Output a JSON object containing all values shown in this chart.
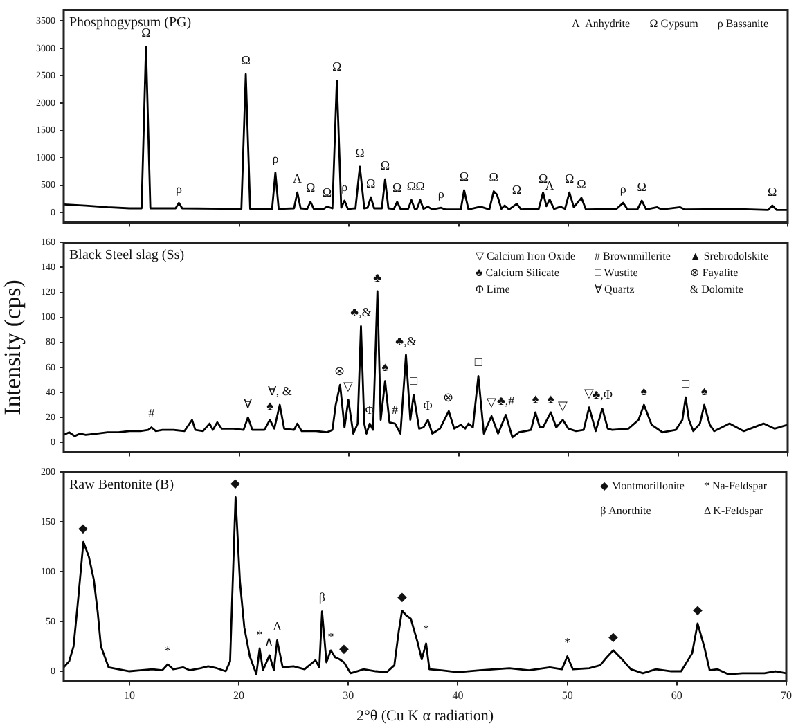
{
  "chart_data": [
    {
      "type": "line",
      "title": "Phosphogypsum (PG)",
      "color": "#000000",
      "x": [
        4,
        6,
        8,
        10,
        11.1,
        11.5,
        11.9,
        14.2,
        14.5,
        14.8,
        20.2,
        20.6,
        21.0,
        23.0,
        23.3,
        23.6,
        25.0,
        25.3,
        25.6,
        26.2,
        26.5,
        26.8,
        27.7,
        28.0,
        28.5,
        28.9,
        29.3,
        29.6,
        29.9,
        30.6,
        31.0,
        31.4,
        31.7,
        32.0,
        32.3,
        33.0,
        33.3,
        33.6,
        34.1,
        34.4,
        34.7,
        35.4,
        35.7,
        36.0,
        36.2,
        36.5,
        36.8,
        37.2,
        37.6,
        38.4,
        38.8,
        40.2,
        40.5,
        40.9,
        42.0,
        42.8,
        43.2,
        43.5,
        43.9,
        44.2,
        44.6,
        45.3,
        45.7,
        46.5,
        47.3,
        47.7,
        48.0,
        48.3,
        48.7,
        49.3,
        49.7,
        50.1,
        50.5,
        51.2,
        51.6,
        54.4,
        55.0,
        55.4,
        56.3,
        56.7,
        57.1,
        58.1,
        58.5,
        60.2,
        60.6,
        65.1,
        68.2,
        68.6,
        69.0,
        70
      ],
      "values": [
        150,
        130,
        100,
        80,
        80,
        3030,
        80,
        80,
        180,
        80,
        70,
        2530,
        70,
        70,
        730,
        70,
        80,
        370,
        80,
        70,
        200,
        70,
        70,
        110,
        80,
        2410,
        90,
        220,
        70,
        80,
        840,
        80,
        90,
        280,
        80,
        80,
        610,
        80,
        70,
        200,
        70,
        70,
        230,
        70,
        70,
        230,
        70,
        110,
        60,
        90,
        60,
        60,
        410,
        60,
        110,
        60,
        390,
        330,
        70,
        130,
        60,
        160,
        60,
        70,
        70,
        370,
        120,
        240,
        70,
        110,
        70,
        370,
        100,
        270,
        60,
        70,
        180,
        60,
        60,
        220,
        60,
        100,
        60,
        100,
        60,
        70,
        50,
        130,
        50,
        50
      ],
      "xlim": [
        4,
        70
      ],
      "xticks": [
        10,
        20,
        30,
        40,
        50,
        60,
        70
      ],
      "ylim": [
        -180,
        3700
      ],
      "yticks": [
        0,
        500,
        1000,
        1500,
        2000,
        2500,
        3000,
        3500
      ],
      "tick_labels": "y",
      "annotations": [
        "Λ  Anhydrite",
        "Ω Gypsum",
        "ρ Bassanite",
        {
          "text": "Ω",
          "x": 11.5,
          "y": 3030
        },
        {
          "text": "ρ",
          "x": 14.5,
          "y": 180
        },
        {
          "text": "Ω",
          "x": 20.6,
          "y": 2530
        },
        {
          "text": "ρ",
          "x": 23.3,
          "y": 730
        },
        {
          "text": "Λ",
          "x": 25.3,
          "y": 370
        },
        {
          "text": "Ω",
          "x": 26.5,
          "y": 200
        },
        {
          "text": "Ω",
          "x": 28.0,
          "y": 110
        },
        {
          "text": "Ω",
          "x": 28.9,
          "y": 2410
        },
        {
          "text": "ρ",
          "x": 29.6,
          "y": 220
        },
        {
          "text": "Ω",
          "x": 31.0,
          "y": 840
        },
        {
          "text": "Ω",
          "x": 32.0,
          "y": 280
        },
        {
          "text": "Ω",
          "x": 33.3,
          "y": 610
        },
        {
          "text": "Ω",
          "x": 34.4,
          "y": 200
        },
        {
          "text": "Ω",
          "x": 35.7,
          "y": 230
        },
        {
          "text": "Ω",
          "x": 36.5,
          "y": 230
        },
        {
          "text": "ρ",
          "x": 38.4,
          "y": 90
        },
        {
          "text": "Ω",
          "x": 40.5,
          "y": 410
        },
        {
          "text": "Ω",
          "x": 43.2,
          "y": 390
        },
        {
          "text": "Ω",
          "x": 45.3,
          "y": 160
        },
        {
          "text": "Ω",
          "x": 47.7,
          "y": 370
        },
        {
          "text": "Λ",
          "x": 48.3,
          "y": 240
        },
        {
          "text": "Ω",
          "x": 50.1,
          "y": 370
        },
        {
          "text": "Ω",
          "x": 51.2,
          "y": 270
        },
        {
          "text": "ρ",
          "x": 55.0,
          "y": 180
        },
        {
          "text": "Ω",
          "x": 56.7,
          "y": 220
        },
        {
          "text": "Ω",
          "x": 68.6,
          "y": 130
        }
      ]
    },
    {
      "type": "line",
      "title": "Black Steel slag (Ss)",
      "ylabel": "Intensity (cps)",
      "color": "#000000",
      "x": [
        4,
        4.5,
        5,
        5.5,
        6,
        7,
        8,
        9,
        10,
        11,
        11.7,
        12,
        12.4,
        13,
        14,
        15,
        15.7,
        16,
        16.7,
        17.3,
        17.6,
        18.0,
        18.4,
        19.5,
        20.4,
        20.8,
        21.2,
        22.3,
        22.8,
        23.2,
        23.7,
        24.1,
        25.0,
        25.3,
        25.7,
        27.0,
        28.0,
        28.5,
        28.8,
        29.2,
        29.6,
        29.95,
        30.4,
        30.8,
        31.1,
        31.4,
        31.6,
        31.9,
        32.2,
        32.6,
        32.9,
        33.3,
        33.7,
        34.2,
        34.7,
        35.2,
        35.6,
        35.9,
        36.4,
        36.8,
        37.2,
        37.6,
        38.3,
        39.1,
        39.6,
        40.2,
        40.6,
        40.9,
        41.3,
        41.8,
        42.3,
        43.0,
        43.6,
        44.3,
        44.9,
        45.5,
        46.1,
        46.6,
        47.0,
        47.4,
        47.7,
        48.4,
        48.9,
        49.5,
        50.0,
        50.7,
        51.4,
        51.9,
        52.5,
        53.1,
        53.6,
        54.0,
        55.5,
        56.4,
        56.9,
        57.6,
        58.6,
        59.8,
        60.4,
        60.7,
        61.0,
        61.4,
        62.0,
        62.4,
        62.9,
        63.3,
        64.7,
        66.0,
        67.8,
        68.8,
        70
      ],
      "values": [
        6,
        8,
        5,
        7,
        6,
        7,
        8,
        8,
        9,
        9,
        10,
        12,
        9,
        10,
        10,
        9,
        18,
        10,
        9,
        15,
        10,
        16,
        11,
        11,
        10,
        20,
        10,
        10,
        18,
        11,
        30,
        11,
        10,
        15,
        9,
        9,
        8,
        10,
        30,
        46,
        12,
        34,
        7,
        15,
        93,
        15,
        7,
        15,
        10,
        121,
        18,
        49,
        16,
        15,
        7,
        70,
        18,
        38,
        11,
        12,
        18,
        7,
        11,
        25,
        11,
        14,
        11,
        15,
        12,
        53,
        7,
        21,
        7,
        22,
        4,
        8,
        9,
        10,
        24,
        12,
        12,
        24,
        12,
        18,
        11,
        9,
        10,
        28,
        9,
        27,
        11,
        10,
        11,
        18,
        30,
        14,
        8,
        10,
        18,
        36,
        18,
        9,
        15,
        30,
        14,
        9,
        15,
        9,
        15,
        11,
        14
      ],
      "xlim": [
        4,
        70
      ],
      "xticks": [
        10,
        20,
        30,
        40,
        50,
        60,
        70
      ],
      "ylim": [
        -8,
        160
      ],
      "yticks": [
        0,
        20,
        40,
        60,
        80,
        100,
        120,
        140,
        160
      ],
      "tick_labels": "y",
      "annotations": [
        "▽ Calcium Iron Oxide",
        "# Brownmillerite",
        "▲ Srebrodolskite",
        "♣ Calcium Silicate",
        "□ Wustite",
        "⊗ Fayalite",
        "Φ Lime",
        "∀ Quartz",
        "& Dolomite",
        {
          "text": "#",
          "x": 12.0,
          "y": 12
        },
        {
          "text": "∀",
          "x": 20.8,
          "y": 20
        },
        {
          "text": "♠",
          "x": 22.8,
          "y": 18
        },
        {
          "text": "∀, &",
          "x": 23.7,
          "y": 30
        },
        {
          "text": "⊗",
          "x": 29.2,
          "y": 46
        },
        {
          "text": "▽",
          "x": 29.95,
          "y": 34
        },
        {
          "text": "♣,&",
          "x": 31.1,
          "y": 93
        },
        {
          "text": "Φ",
          "x": 31.9,
          "y": 15
        },
        {
          "text": "♣",
          "x": 32.6,
          "y": 121
        },
        {
          "text": "♠",
          "x": 33.3,
          "y": 49
        },
        {
          "text": "#",
          "x": 34.2,
          "y": 15
        },
        {
          "text": "♣,&",
          "x": 35.2,
          "y": 70
        },
        {
          "text": "□",
          "x": 35.9,
          "y": 38
        },
        {
          "text": "Φ",
          "x": 37.2,
          "y": 18
        },
        {
          "text": "⊗",
          "x": 39.1,
          "y": 25
        },
        {
          "text": "□",
          "x": 41.8,
          "y": 53
        },
        {
          "text": "▽",
          "x": 43.0,
          "y": 21
        },
        {
          "text": "♣,#",
          "x": 44.3,
          "y": 22
        },
        {
          "text": "♠",
          "x": 47.0,
          "y": 24
        },
        {
          "text": "♠",
          "x": 48.4,
          "y": 24
        },
        {
          "text": "▽",
          "x": 49.5,
          "y": 18
        },
        {
          "text": "▽",
          "x": 51.9,
          "y": 28
        },
        {
          "text": "♣,Φ",
          "x": 53.1,
          "y": 27
        },
        {
          "text": "♠",
          "x": 56.9,
          "y": 30
        },
        {
          "text": "□",
          "x": 60.7,
          "y": 36
        },
        {
          "text": "♠",
          "x": 62.4,
          "y": 30
        }
      ]
    },
    {
      "type": "line",
      "title": "Raw Bentonite (B)",
      "xlabel": "2°θ (Cu K α radiation)",
      "color": "#000000",
      "x": [
        4,
        4.5,
        4.9,
        5.3,
        5.8,
        6.3,
        6.75,
        7.1,
        7.4,
        8.1,
        9,
        10,
        11,
        12.1,
        13,
        13.5,
        14,
        14.9,
        15.5,
        16.5,
        17.2,
        18,
        18.8,
        19.2,
        19.7,
        20.1,
        20.5,
        21.0,
        21.6,
        21.9,
        22.2,
        22.8,
        23.2,
        23.5,
        24.0,
        25,
        26,
        27.0,
        27.35,
        27.6,
        28.0,
        28.4,
        28.8,
        29.2,
        29.6,
        30.2,
        31.4,
        32.5,
        33.5,
        34.2,
        34.6,
        34.9,
        35.3,
        35.7,
        36.3,
        36.7,
        37.1,
        37.4,
        38.5,
        40,
        42,
        44.7,
        46.5,
        48.4,
        49.5,
        50.0,
        50.5,
        52,
        53.0,
        53.6,
        54.2,
        55.0,
        55.8,
        56.9,
        58.1,
        59.5,
        60.4,
        61.4,
        61.9,
        62.5,
        63.0,
        63.7,
        64.7,
        66,
        68,
        69,
        70
      ],
      "values": [
        4,
        10,
        25,
        70,
        130,
        115,
        92,
        60,
        25,
        4,
        2,
        0,
        1,
        2,
        1,
        7,
        2,
        4,
        1,
        3,
        5,
        3,
        0,
        10,
        175,
        90,
        44,
        15,
        -3,
        23,
        1,
        16,
        1,
        31,
        4,
        5,
        2,
        11,
        4,
        60,
        9,
        21,
        14,
        12,
        9,
        -2,
        2,
        0,
        -1,
        6,
        40,
        61,
        56,
        53,
        30,
        12,
        28,
        2,
        1,
        -1,
        1,
        3,
        1,
        4,
        2,
        15,
        2,
        3,
        6,
        14,
        21,
        12,
        2,
        -2,
        2,
        0,
        0,
        18,
        48,
        25,
        1,
        2,
        -3,
        -2,
        -2,
        0,
        -2
      ],
      "xlim": [
        4,
        70
      ],
      "xticks": [
        10,
        20,
        30,
        40,
        50,
        60,
        70
      ],
      "ylim": [
        -10,
        200
      ],
      "yticks": [
        0,
        50,
        100,
        150,
        200
      ],
      "annotations": [
        "◆ Montmorillonite",
        "* Na-Feldspar",
        "β Anorthite",
        "Δ K-Feldspar",
        {
          "text": "◆",
          "x": 5.8,
          "y": 130
        },
        {
          "text": "*",
          "x": 13.5,
          "y": 7
        },
        {
          "text": "◆",
          "x": 19.7,
          "y": 175
        },
        {
          "text": "*",
          "x": 21.9,
          "y": 23
        },
        {
          "text": "∧",
          "x": 22.8,
          "y": 16
        },
        {
          "text": "Δ",
          "x": 23.5,
          "y": 31
        },
        {
          "text": "β",
          "x": 27.6,
          "y": 60
        },
        {
          "text": "*",
          "x": 28.4,
          "y": 21
        },
        {
          "text": "◆",
          "x": 29.6,
          "y": 9
        },
        {
          "text": "◆",
          "x": 34.9,
          "y": 61
        },
        {
          "text": "*",
          "x": 37.1,
          "y": 28
        },
        {
          "text": "*",
          "x": 50.0,
          "y": 15
        },
        {
          "text": "◆",
          "x": 54.2,
          "y": 21
        },
        {
          "text": "◆",
          "x": 61.9,
          "y": 48
        }
      ]
    }
  ]
}
